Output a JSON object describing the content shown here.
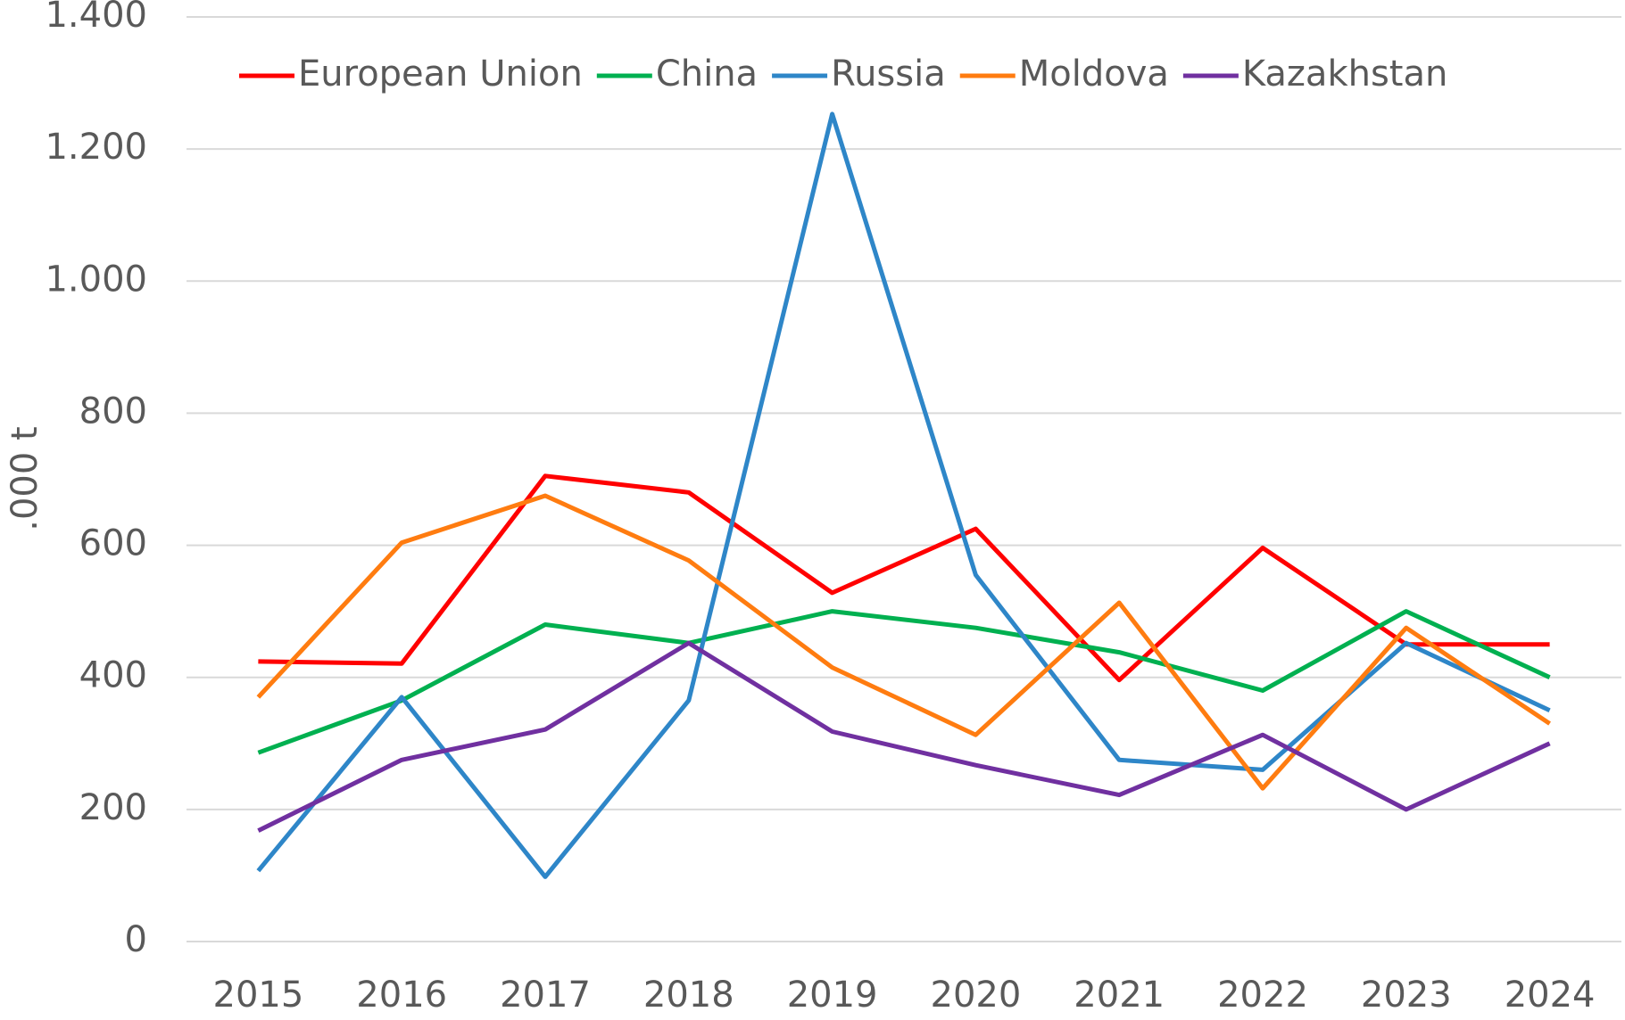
{
  "chart_data": {
    "type": "line",
    "y_label": ".000 t",
    "categories": [
      "2015",
      "2016",
      "2017",
      "2018",
      "2019",
      "2020",
      "2021",
      "2022",
      "2023",
      "2024"
    ],
    "series": [
      {
        "name": "European Union",
        "color": "#ff0000",
        "values": [
          424,
          421,
          705,
          680,
          528,
          625,
          396,
          596,
          450,
          450
        ]
      },
      {
        "name": "China",
        "color": "#00b050",
        "values": [
          286,
          365,
          480,
          452,
          500,
          475,
          438,
          380,
          500,
          400
        ]
      },
      {
        "name": "Russia",
        "color": "#2e86c8",
        "values": [
          107,
          370,
          98,
          365,
          1253,
          555,
          275,
          260,
          452,
          350
        ]
      },
      {
        "name": "Moldova",
        "color": "#ff7c10",
        "values": [
          370,
          604,
          675,
          577,
          415,
          313,
          513,
          232,
          475,
          330
        ]
      },
      {
        "name": "Kazakhstan",
        "color": "#7030a0",
        "values": [
          168,
          275,
          321,
          452,
          318,
          267,
          222,
          313,
          200,
          300
        ]
      }
    ],
    "ylim": [
      0,
      1400
    ],
    "yticks": [
      0,
      200,
      400,
      600,
      800,
      {
        "value": 1000,
        "label": "1.000"
      },
      {
        "value": 1200,
        "label": "1.200"
      },
      {
        "value": 1400,
        "label": "1.400"
      }
    ],
    "grid": true,
    "legend": "top"
  }
}
